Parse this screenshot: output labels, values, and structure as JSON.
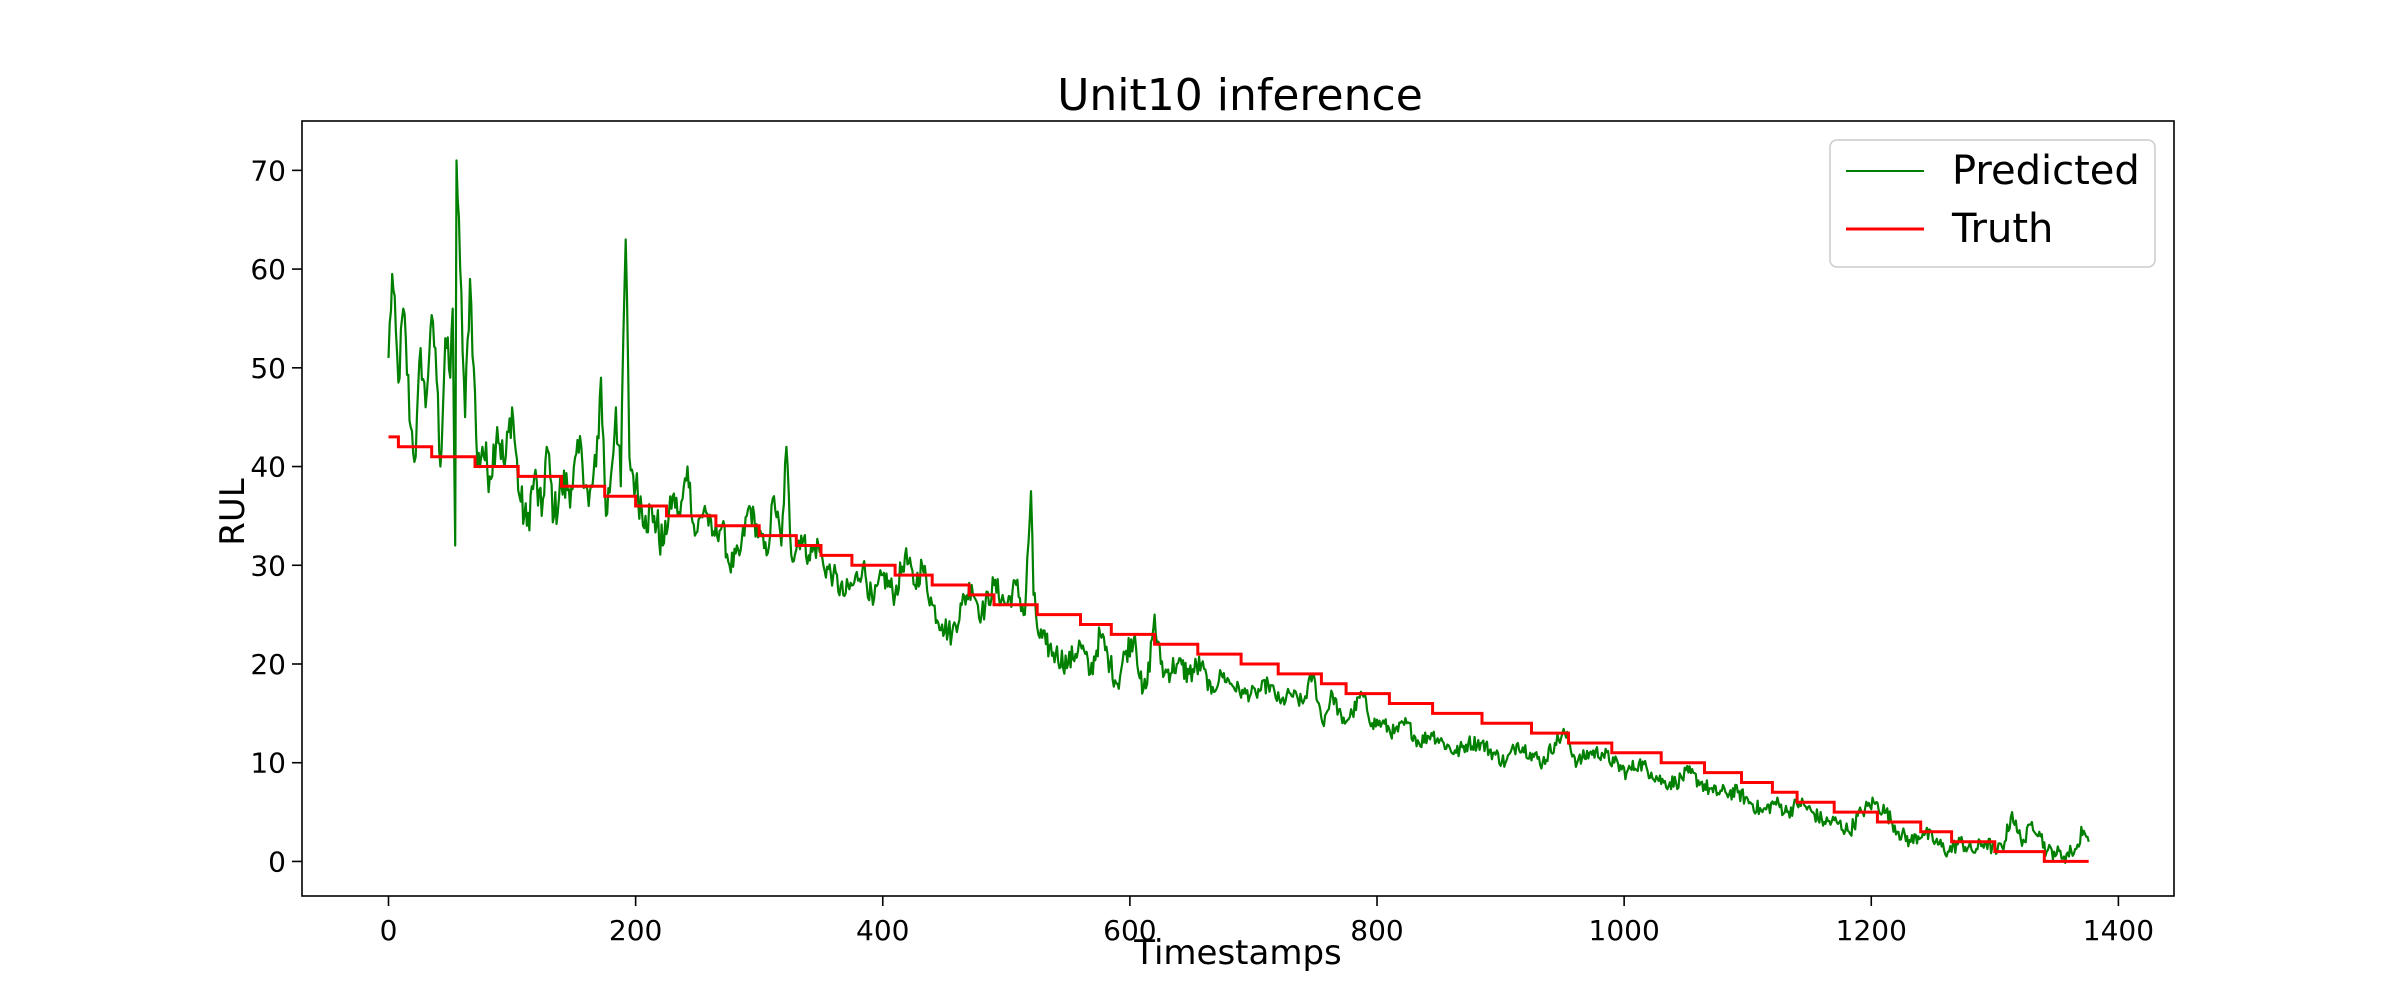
{
  "chart_data": {
    "type": "line",
    "title": "Unit10 inference",
    "xlabel": "Timestamps",
    "ylabel": "RUL",
    "xlim": [
      -70,
      1445
    ],
    "ylim": [
      -3.5,
      75
    ],
    "xticks": [
      0,
      200,
      400,
      600,
      800,
      1000,
      1200,
      1400
    ],
    "yticks": [
      0,
      10,
      20,
      30,
      40,
      50,
      60,
      70
    ],
    "grid": false,
    "legend_position": "top-right",
    "series": [
      {
        "name": "Predicted",
        "color": "#008000",
        "style": "noisy line",
        "anchors": [
          [
            0,
            51
          ],
          [
            3,
            59.5
          ],
          [
            8,
            48.5
          ],
          [
            12,
            56
          ],
          [
            18,
            44
          ],
          [
            22,
            41
          ],
          [
            26,
            52
          ],
          [
            30,
            46
          ],
          [
            34,
            54
          ],
          [
            38,
            52
          ],
          [
            42,
            40
          ],
          [
            46,
            53
          ],
          [
            50,
            49
          ],
          [
            52,
            56
          ],
          [
            54,
            32
          ],
          [
            55,
            71
          ],
          [
            58,
            60
          ],
          [
            62,
            45
          ],
          [
            66,
            59
          ],
          [
            69,
            50
          ],
          [
            72,
            40
          ],
          [
            76,
            42
          ],
          [
            82,
            39
          ],
          [
            88,
            44
          ],
          [
            94,
            40
          ],
          [
            100,
            46
          ],
          [
            106,
            37
          ],
          [
            112,
            34
          ],
          [
            118,
            39
          ],
          [
            124,
            35
          ],
          [
            128,
            42
          ],
          [
            134,
            35
          ],
          [
            140,
            38
          ],
          [
            148,
            38
          ],
          [
            156,
            42
          ],
          [
            162,
            36
          ],
          [
            168,
            40
          ],
          [
            172,
            49
          ],
          [
            176,
            35
          ],
          [
            180,
            39
          ],
          [
            184,
            46
          ],
          [
            188,
            38
          ],
          [
            190,
            53
          ],
          [
            192,
            63
          ],
          [
            195,
            41
          ],
          [
            200,
            38
          ],
          [
            208,
            35
          ],
          [
            215,
            35
          ],
          [
            222,
            32
          ],
          [
            230,
            37
          ],
          [
            236,
            35
          ],
          [
            242,
            40
          ],
          [
            248,
            33
          ],
          [
            256,
            36
          ],
          [
            262,
            33
          ],
          [
            270,
            34
          ],
          [
            276,
            30
          ],
          [
            284,
            31
          ],
          [
            292,
            36
          ],
          [
            300,
            33
          ],
          [
            306,
            31
          ],
          [
            312,
            37
          ],
          [
            318,
            32
          ],
          [
            322,
            42
          ],
          [
            326,
            31
          ],
          [
            334,
            33
          ],
          [
            340,
            31
          ],
          [
            348,
            32
          ],
          [
            352,
            30
          ],
          [
            360,
            29
          ],
          [
            368,
            27
          ],
          [
            376,
            28
          ],
          [
            384,
            30
          ],
          [
            392,
            26
          ],
          [
            400,
            29
          ],
          [
            410,
            27
          ],
          [
            418,
            31
          ],
          [
            426,
            28
          ],
          [
            432,
            30
          ],
          [
            440,
            26
          ],
          [
            448,
            24
          ],
          [
            456,
            23
          ],
          [
            464,
            26
          ],
          [
            472,
            28
          ],
          [
            480,
            25
          ],
          [
            490,
            28
          ],
          [
            500,
            26
          ],
          [
            508,
            28
          ],
          [
            515,
            25
          ],
          [
            520,
            37.5
          ],
          [
            522,
            27
          ],
          [
            526,
            23
          ],
          [
            532,
            22
          ],
          [
            540,
            21
          ],
          [
            550,
            20
          ],
          [
            560,
            22
          ],
          [
            568,
            19
          ],
          [
            576,
            23
          ],
          [
            584,
            20
          ],
          [
            590,
            18
          ],
          [
            596,
            21
          ],
          [
            604,
            23
          ],
          [
            610,
            17
          ],
          [
            614,
            18
          ],
          [
            620,
            25
          ],
          [
            622,
            22
          ],
          [
            628,
            19
          ],
          [
            638,
            20
          ],
          [
            648,
            19
          ],
          [
            658,
            20
          ],
          [
            666,
            17
          ],
          [
            674,
            19
          ],
          [
            682,
            18
          ],
          [
            692,
            17
          ],
          [
            702,
            17
          ],
          [
            712,
            18
          ],
          [
            722,
            16
          ],
          [
            730,
            17
          ],
          [
            740,
            16
          ],
          [
            748,
            19
          ],
          [
            756,
            14
          ],
          [
            764,
            17
          ],
          [
            772,
            14
          ],
          [
            780,
            15
          ],
          [
            788,
            17
          ],
          [
            796,
            14
          ],
          [
            804,
            14
          ],
          [
            814,
            13
          ],
          [
            824,
            14
          ],
          [
            834,
            12
          ],
          [
            844,
            13
          ],
          [
            854,
            12
          ],
          [
            864,
            11
          ],
          [
            874,
            12
          ],
          [
            884,
            12
          ],
          [
            894,
            11
          ],
          [
            904,
            10
          ],
          [
            914,
            12
          ],
          [
            924,
            11
          ],
          [
            934,
            10
          ],
          [
            944,
            12
          ],
          [
            952,
            13
          ],
          [
            962,
            10
          ],
          [
            972,
            11
          ],
          [
            982,
            11
          ],
          [
            992,
            10
          ],
          [
            1002,
            9
          ],
          [
            1012,
            10
          ],
          [
            1022,
            9
          ],
          [
            1032,
            8
          ],
          [
            1042,
            8
          ],
          [
            1052,
            9
          ],
          [
            1062,
            8
          ],
          [
            1072,
            7
          ],
          [
            1082,
            7
          ],
          [
            1092,
            7
          ],
          [
            1102,
            6
          ],
          [
            1112,
            5
          ],
          [
            1122,
            6
          ],
          [
            1132,
            5
          ],
          [
            1142,
            6
          ],
          [
            1152,
            5
          ],
          [
            1162,
            4
          ],
          [
            1172,
            4
          ],
          [
            1182,
            3
          ],
          [
            1192,
            5
          ],
          [
            1202,
            6
          ],
          [
            1212,
            5
          ],
          [
            1222,
            3
          ],
          [
            1232,
            2
          ],
          [
            1242,
            3
          ],
          [
            1252,
            2
          ],
          [
            1262,
            1
          ],
          [
            1272,
            2
          ],
          [
            1282,
            1
          ],
          [
            1292,
            2
          ],
          [
            1302,
            1
          ],
          [
            1308,
            2
          ],
          [
            1314,
            5
          ],
          [
            1318,
            3
          ],
          [
            1324,
            2
          ],
          [
            1330,
            4
          ],
          [
            1336,
            3
          ],
          [
            1342,
            1
          ],
          [
            1348,
            1
          ],
          [
            1356,
            0.5
          ],
          [
            1362,
            1
          ],
          [
            1368,
            1.5
          ],
          [
            1370,
            3.5
          ],
          [
            1374,
            2.5
          ],
          [
            1376,
            2
          ]
        ]
      },
      {
        "name": "Truth",
        "color": "#ff0000",
        "style": "step",
        "points": [
          [
            0,
            43
          ],
          [
            8,
            43
          ],
          [
            8,
            42
          ],
          [
            35,
            42
          ],
          [
            35,
            41
          ],
          [
            70,
            41
          ],
          [
            70,
            40
          ],
          [
            105,
            40
          ],
          [
            105,
            39
          ],
          [
            140,
            39
          ],
          [
            140,
            38
          ],
          [
            175,
            38
          ],
          [
            175,
            37
          ],
          [
            200,
            37
          ],
          [
            200,
            36
          ],
          [
            225,
            36
          ],
          [
            225,
            35
          ],
          [
            265,
            35
          ],
          [
            265,
            34
          ],
          [
            300,
            34
          ],
          [
            300,
            33
          ],
          [
            330,
            33
          ],
          [
            330,
            32
          ],
          [
            350,
            32
          ],
          [
            350,
            31
          ],
          [
            375,
            31
          ],
          [
            375,
            30
          ],
          [
            410,
            30
          ],
          [
            410,
            29
          ],
          [
            440,
            29
          ],
          [
            440,
            28
          ],
          [
            470,
            28
          ],
          [
            470,
            27
          ],
          [
            490,
            27
          ],
          [
            490,
            26
          ],
          [
            525,
            26
          ],
          [
            525,
            25
          ],
          [
            560,
            25
          ],
          [
            560,
            24
          ],
          [
            585,
            24
          ],
          [
            585,
            23
          ],
          [
            620,
            23
          ],
          [
            620,
            22
          ],
          [
            655,
            22
          ],
          [
            655,
            21
          ],
          [
            690,
            21
          ],
          [
            690,
            20
          ],
          [
            720,
            20
          ],
          [
            720,
            19
          ],
          [
            755,
            19
          ],
          [
            755,
            18
          ],
          [
            775,
            18
          ],
          [
            775,
            17
          ],
          [
            810,
            17
          ],
          [
            810,
            16
          ],
          [
            845,
            16
          ],
          [
            845,
            15
          ],
          [
            885,
            15
          ],
          [
            885,
            14
          ],
          [
            925,
            14
          ],
          [
            925,
            13
          ],
          [
            955,
            13
          ],
          [
            955,
            12
          ],
          [
            990,
            12
          ],
          [
            990,
            11
          ],
          [
            1030,
            11
          ],
          [
            1030,
            10
          ],
          [
            1065,
            10
          ],
          [
            1065,
            9
          ],
          [
            1095,
            9
          ],
          [
            1095,
            8
          ],
          [
            1120,
            8
          ],
          [
            1120,
            7
          ],
          [
            1140,
            7
          ],
          [
            1140,
            6
          ],
          [
            1170,
            6
          ],
          [
            1170,
            5
          ],
          [
            1205,
            5
          ],
          [
            1205,
            4
          ],
          [
            1240,
            4
          ],
          [
            1240,
            3
          ],
          [
            1265,
            3
          ],
          [
            1265,
            2
          ],
          [
            1300,
            2
          ],
          [
            1300,
            1
          ],
          [
            1340,
            1
          ],
          [
            1340,
            0
          ],
          [
            1376,
            0
          ]
        ]
      }
    ]
  }
}
